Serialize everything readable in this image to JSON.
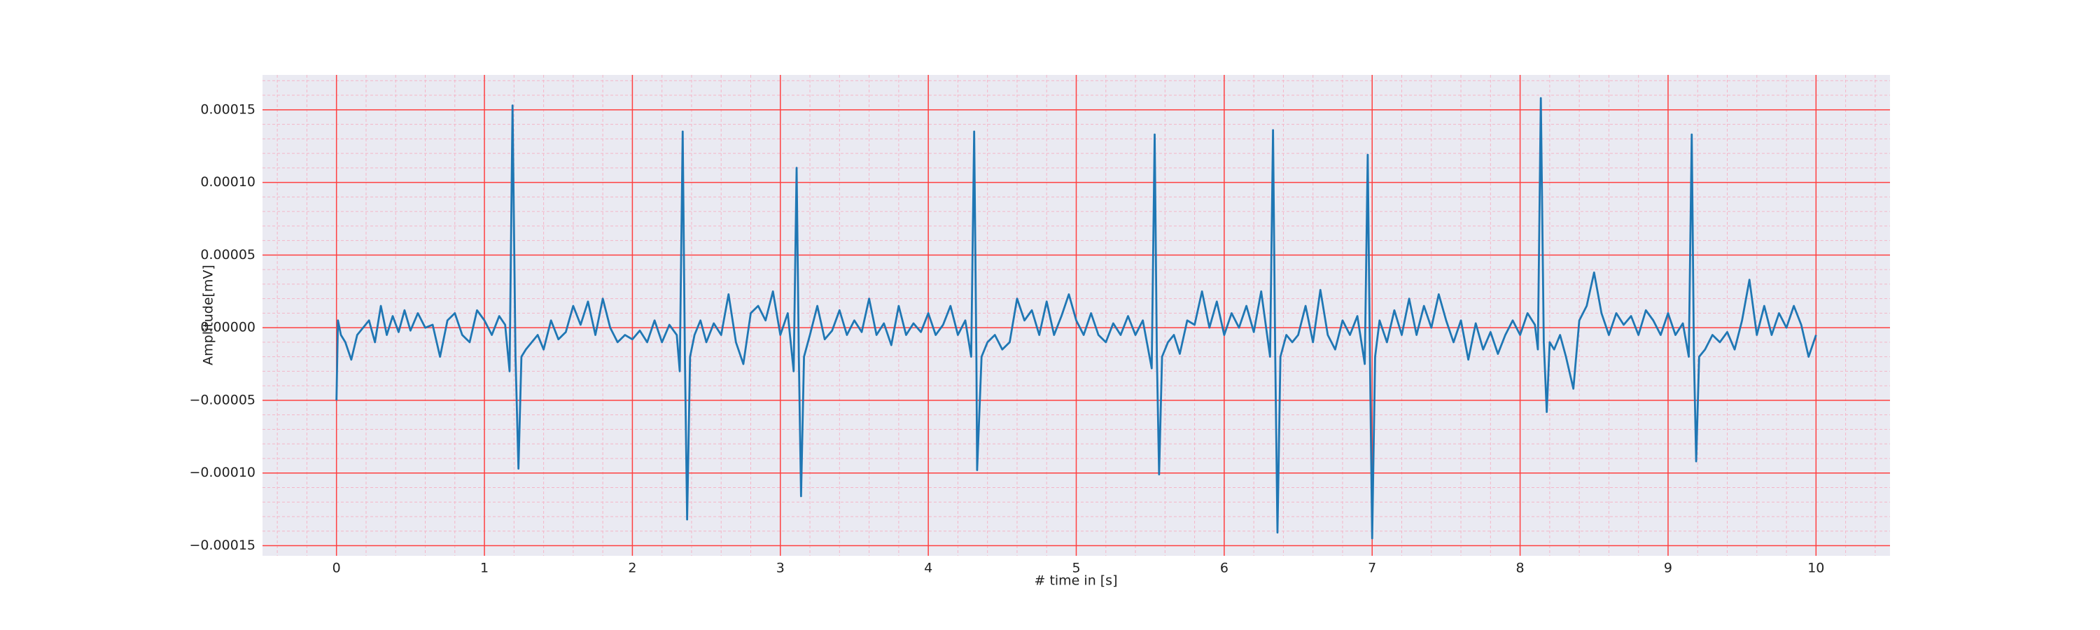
{
  "chart_data": {
    "type": "line",
    "xlabel": "# time in [s]",
    "ylabel": "Amplitude[mV]",
    "color": "#1f77b4",
    "background": "#eaeaf2",
    "grid_color": "#ff4040",
    "minor_grid_color": "#f4b6c8",
    "grid": true,
    "minor_grid": true,
    "xlim": [
      -0.5,
      10.5
    ],
    "ylim": [
      -0.000157,
      0.000174
    ],
    "xticks": [
      0,
      1,
      2,
      3,
      4,
      5,
      6,
      7,
      8,
      9,
      10
    ],
    "yticks": [
      {
        "value": -0.00015,
        "label": "−0.00015"
      },
      {
        "value": -0.0001,
        "label": "−0.00010"
      },
      {
        "value": -5e-05,
        "label": "−0.00005"
      },
      {
        "value": 0,
        "label": "0.00000"
      },
      {
        "value": 5e-05,
        "label": "0.00005"
      },
      {
        "value": 0.0001,
        "label": "0.00010"
      },
      {
        "value": 0.00015,
        "label": "0.00015"
      }
    ],
    "x": [
      0.0,
      0.01,
      0.03,
      0.06,
      0.1,
      0.14,
      0.18,
      0.22,
      0.26,
      0.3,
      0.34,
      0.38,
      0.42,
      0.46,
      0.5,
      0.55,
      0.6,
      0.65,
      0.7,
      0.75,
      0.8,
      0.85,
      0.9,
      0.95,
      1.0,
      1.05,
      1.1,
      1.14,
      1.17,
      1.19,
      1.21,
      1.23,
      1.25,
      1.28,
      1.32,
      1.36,
      1.4,
      1.45,
      1.5,
      1.55,
      1.6,
      1.65,
      1.7,
      1.75,
      1.8,
      1.85,
      1.9,
      1.95,
      2.0,
      2.05,
      2.1,
      2.15,
      2.2,
      2.25,
      2.3,
      2.32,
      2.34,
      2.355,
      2.37,
      2.39,
      2.42,
      2.46,
      2.5,
      2.55,
      2.6,
      2.65,
      2.7,
      2.75,
      2.8,
      2.85,
      2.9,
      2.95,
      3.0,
      3.05,
      3.09,
      3.11,
      3.125,
      3.14,
      3.16,
      3.2,
      3.25,
      3.3,
      3.35,
      3.4,
      3.45,
      3.5,
      3.55,
      3.6,
      3.65,
      3.7,
      3.75,
      3.8,
      3.85,
      3.9,
      3.95,
      4.0,
      4.05,
      4.1,
      4.15,
      4.2,
      4.25,
      4.29,
      4.31,
      4.325,
      4.33,
      4.36,
      4.4,
      4.45,
      4.5,
      4.55,
      4.6,
      4.65,
      4.7,
      4.75,
      4.8,
      4.85,
      4.9,
      4.95,
      5.0,
      5.05,
      5.1,
      5.15,
      5.2,
      5.25,
      5.3,
      5.35,
      5.4,
      5.45,
      5.51,
      5.53,
      5.545,
      5.56,
      5.58,
      5.62,
      5.66,
      5.7,
      5.75,
      5.8,
      5.85,
      5.9,
      5.95,
      6.0,
      6.05,
      6.1,
      6.15,
      6.2,
      6.25,
      6.31,
      6.33,
      6.345,
      6.36,
      6.38,
      6.42,
      6.46,
      6.5,
      6.55,
      6.6,
      6.65,
      6.7,
      6.75,
      6.8,
      6.85,
      6.9,
      6.95,
      6.97,
      6.985,
      7.0,
      7.02,
      7.05,
      7.1,
      7.15,
      7.2,
      7.25,
      7.3,
      7.35,
      7.4,
      7.45,
      7.5,
      7.55,
      7.6,
      7.65,
      7.7,
      7.75,
      7.8,
      7.85,
      7.9,
      7.95,
      8.0,
      8.05,
      8.1,
      8.12,
      8.14,
      8.16,
      8.18,
      8.2,
      8.23,
      8.27,
      8.31,
      8.36,
      8.4,
      8.45,
      8.5,
      8.55,
      8.6,
      8.65,
      8.7,
      8.75,
      8.8,
      8.85,
      8.9,
      8.95,
      9.0,
      9.05,
      9.1,
      9.14,
      9.16,
      9.175,
      9.19,
      9.21,
      9.25,
      9.3,
      9.35,
      9.4,
      9.45,
      9.5,
      9.55,
      9.6,
      9.65,
      9.7,
      9.75,
      9.8,
      9.85,
      9.9,
      9.95,
      10.0
    ],
    "values": [
      -5e-05,
      5e-06,
      -5e-06,
      -1e-05,
      -2.2e-05,
      -5e-06,
      0,
      5e-06,
      -1e-05,
      1.5e-05,
      -5e-06,
      8e-06,
      -3e-06,
      1.2e-05,
      -2e-06,
      1e-05,
      0,
      2e-06,
      -2e-05,
      5e-06,
      1e-05,
      -5e-06,
      -1e-05,
      1.2e-05,
      5e-06,
      -5e-06,
      8e-06,
      2e-06,
      -3e-05,
      0.000153,
      -2e-05,
      -9.7e-05,
      -2e-05,
      -1.5e-05,
      -1e-05,
      -5e-06,
      -1.5e-05,
      5e-06,
      -8e-06,
      -3e-06,
      1.5e-05,
      2e-06,
      1.8e-05,
      -5e-06,
      2e-05,
      0,
      -1e-05,
      -5e-06,
      -8e-06,
      -2e-06,
      -1e-05,
      5e-06,
      -1e-05,
      2e-06,
      -5e-06,
      -3e-05,
      0.000135,
      -2e-05,
      -0.000132,
      -2e-05,
      -5e-06,
      5e-06,
      -1e-05,
      3e-06,
      -5e-06,
      2.3e-05,
      -1e-05,
      -2.5e-05,
      1e-05,
      1.5e-05,
      5e-06,
      2.5e-05,
      -5e-06,
      1e-05,
      -3e-05,
      0.00011,
      -2e-05,
      -0.000116,
      -2e-05,
      -5e-06,
      1.5e-05,
      -8e-06,
      -2e-06,
      1.2e-05,
      -5e-06,
      5e-06,
      -3e-06,
      2e-05,
      -5e-06,
      3e-06,
      -1.2e-05,
      1.5e-05,
      -5e-06,
      3e-06,
      -3e-06,
      1e-05,
      -5e-06,
      2e-06,
      1.5e-05,
      -5e-06,
      5e-06,
      -2e-05,
      0.000135,
      -2e-05,
      -9.8e-05,
      -2e-05,
      -1e-05,
      -5e-06,
      -1.5e-05,
      -1e-05,
      2e-05,
      5e-06,
      1.2e-05,
      -5e-06,
      1.8e-05,
      -5e-06,
      8e-06,
      2.3e-05,
      5e-06,
      -5e-06,
      1e-05,
      -5e-06,
      -1e-05,
      3e-06,
      -5e-06,
      8e-06,
      -5e-06,
      5e-06,
      -2.8e-05,
      0.000133,
      -2e-05,
      -0.000101,
      -2e-05,
      -1e-05,
      -5e-06,
      -1.8e-05,
      5e-06,
      2e-06,
      2.5e-05,
      0,
      1.8e-05,
      -5e-06,
      1e-05,
      0,
      1.5e-05,
      -3e-06,
      2.5e-05,
      -2e-05,
      0.000136,
      -2e-05,
      -0.000141,
      -2e-05,
      -5e-06,
      -1e-05,
      -5e-06,
      1.5e-05,
      -1e-05,
      2.6e-05,
      -5e-06,
      -1.5e-05,
      5e-06,
      -5e-06,
      8e-06,
      -2.5e-05,
      0.000119,
      -2e-05,
      -0.000145,
      -2e-05,
      5e-06,
      -1e-05,
      1.2e-05,
      -5e-06,
      2e-05,
      -5e-06,
      1.5e-05,
      0,
      2.3e-05,
      5e-06,
      -1e-05,
      5e-06,
      -2.2e-05,
      3e-06,
      -1.5e-05,
      -3e-06,
      -1.8e-05,
      -5e-06,
      5e-06,
      -5e-06,
      1e-05,
      2e-06,
      -1.5e-05,
      0.000158,
      -1e-05,
      -5.8e-05,
      -1e-05,
      -1.5e-05,
      -5e-06,
      -2e-05,
      -4.2e-05,
      5e-06,
      1.5e-05,
      3.8e-05,
      1e-05,
      -5e-06,
      1e-05,
      2e-06,
      8e-06,
      -5e-06,
      1.2e-05,
      5e-06,
      -5e-06,
      1e-05,
      -5e-06,
      3e-06,
      -2e-05,
      0.000133,
      -2e-05,
      -9.2e-05,
      -2e-05,
      -1.5e-05,
      -5e-06,
      -1e-05,
      -3e-06,
      -1.5e-05,
      5e-06,
      3.3e-05,
      -5e-06,
      1.5e-05,
      -5e-06,
      1e-05,
      0,
      1.5e-05,
      2e-06,
      -2e-05,
      -5e-06
    ]
  }
}
